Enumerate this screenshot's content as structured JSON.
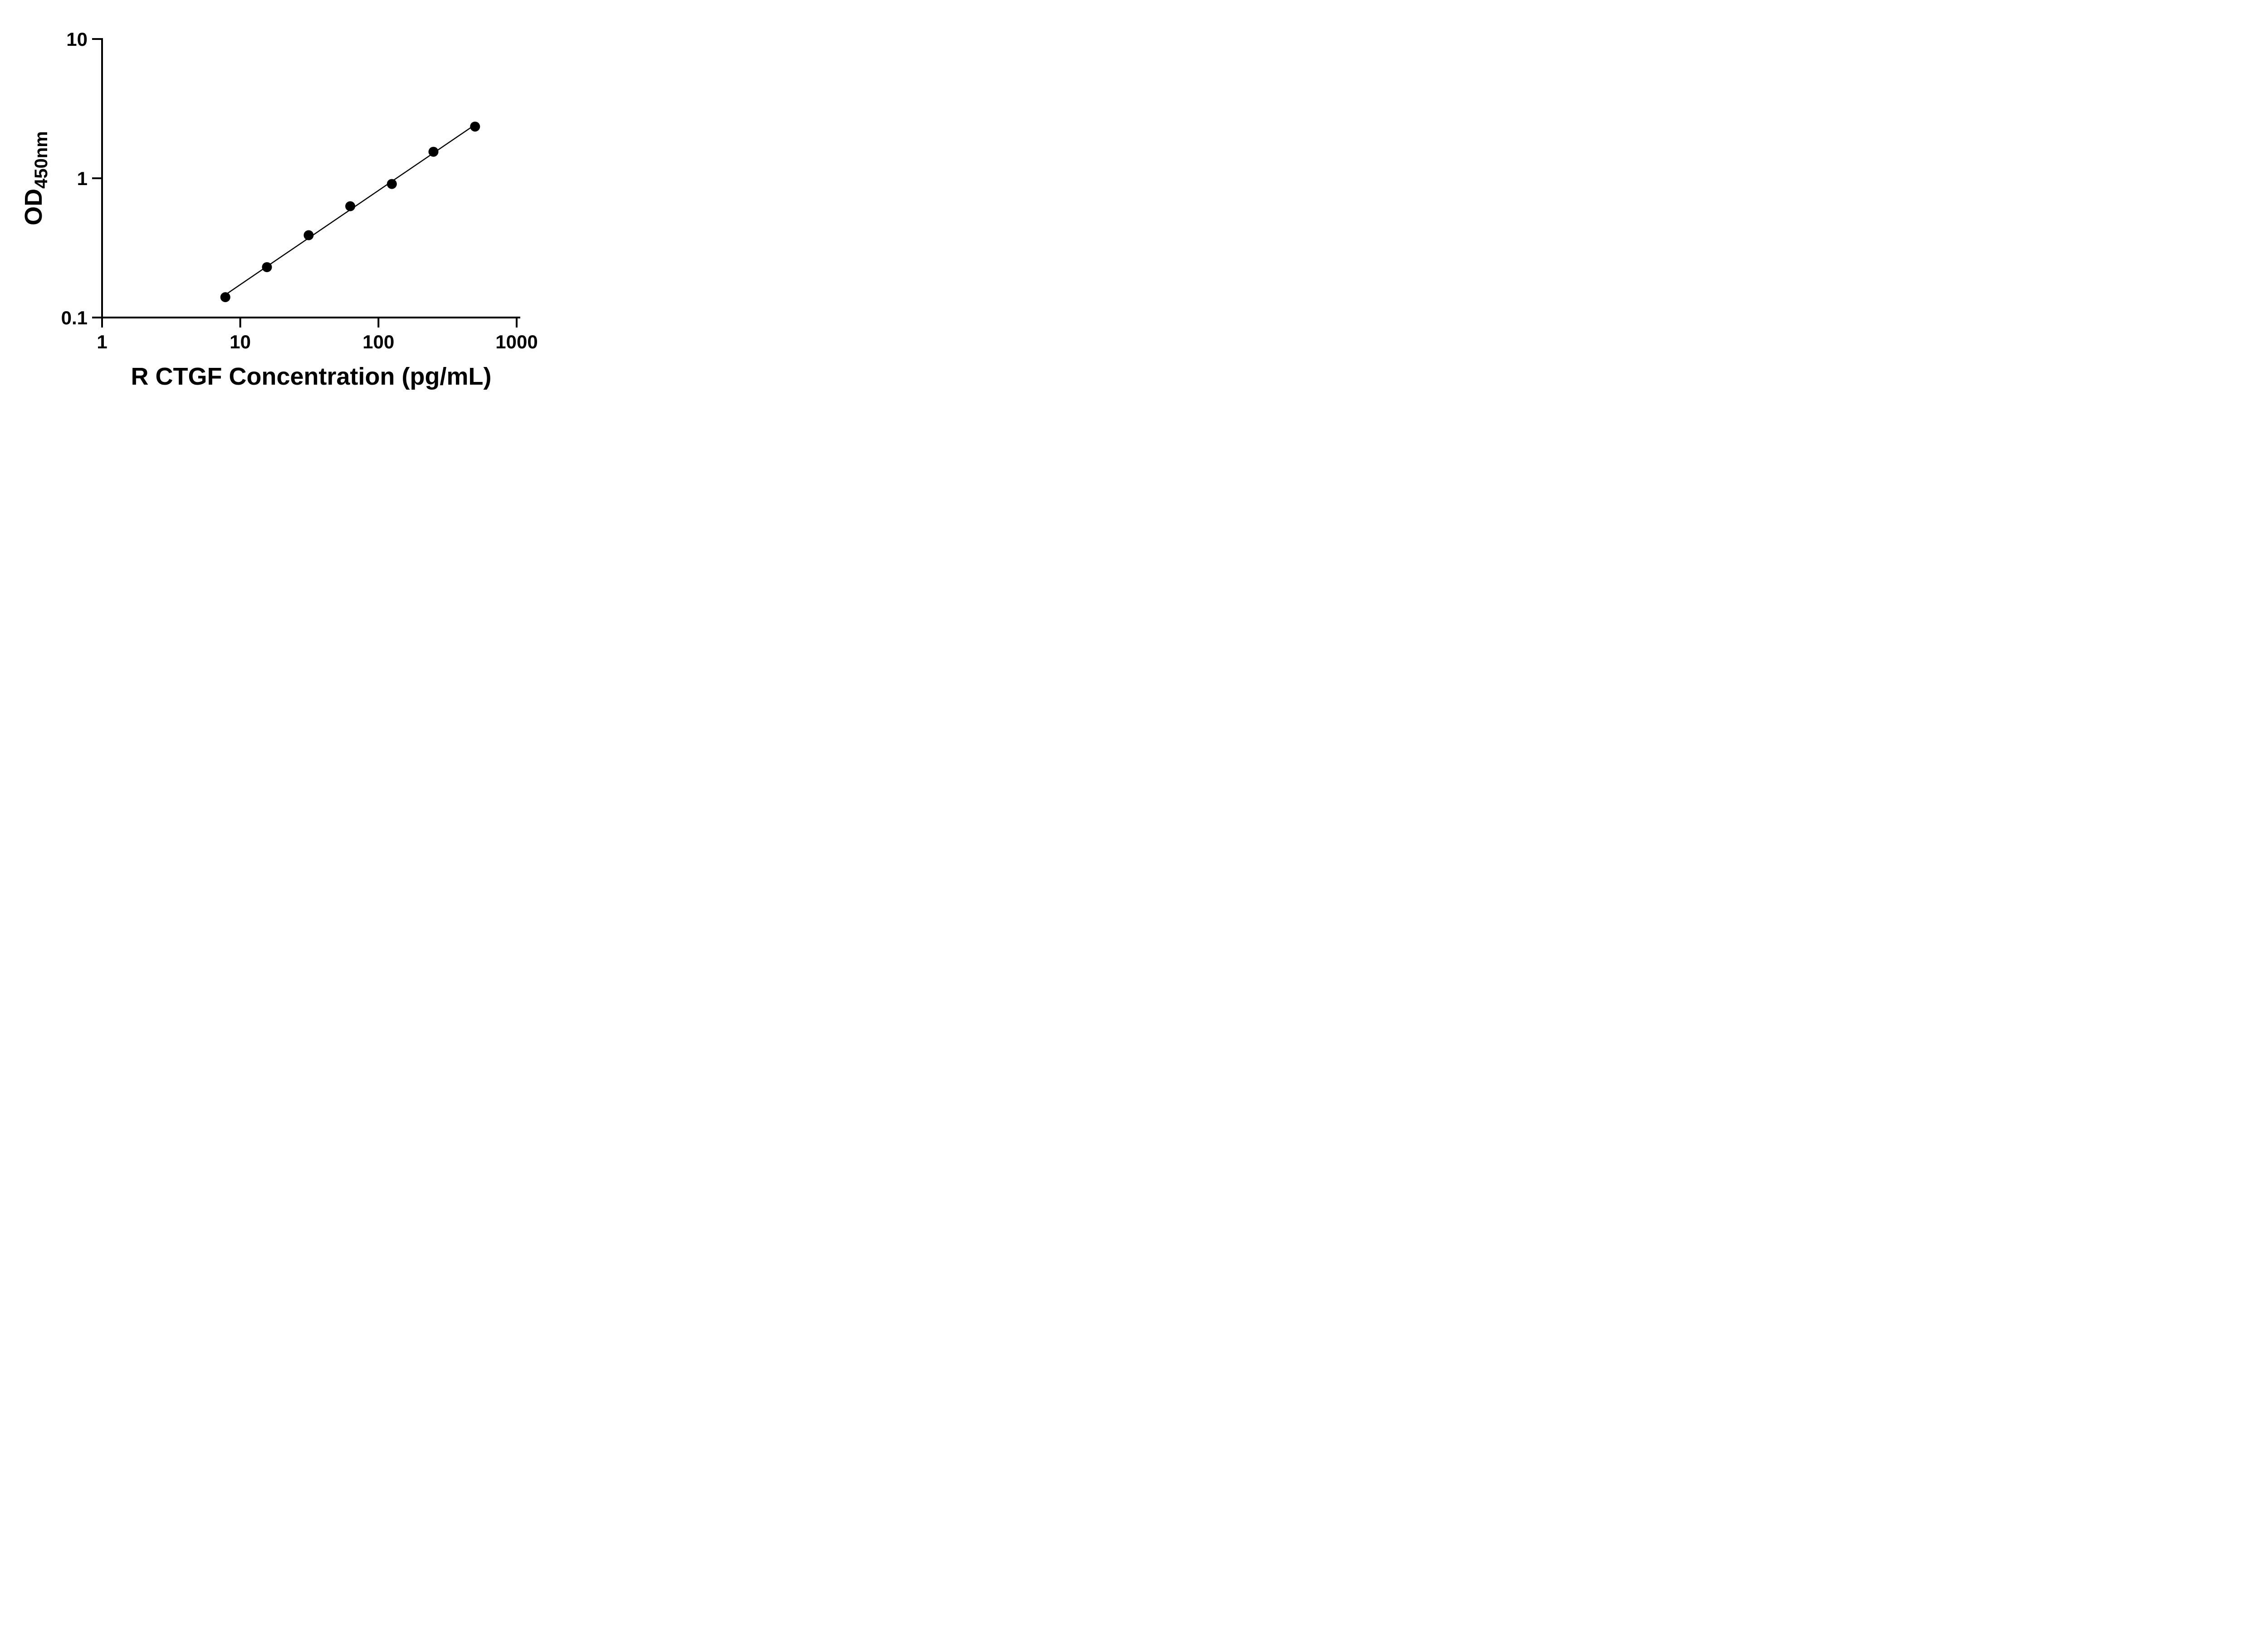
{
  "chart_data": {
    "type": "scatter",
    "title": "",
    "xlabel": "R CTGF Concentration (pg/mL)",
    "ylabel": "OD",
    "ylabel_subscript": "450nm",
    "x_scale": "log10",
    "y_scale": "log10",
    "xlim": [
      1,
      1000
    ],
    "ylim": [
      0.1,
      10
    ],
    "x_ticks": [
      1,
      10,
      100,
      1000
    ],
    "x_tick_labels": [
      "1",
      "10",
      "100",
      "1000"
    ],
    "y_ticks": [
      0.1,
      1,
      10
    ],
    "y_tick_labels": [
      "0.1",
      "1",
      "10"
    ],
    "grid": false,
    "legend": "none",
    "marker_color": "#000000",
    "line_color": "#000000",
    "trendline": "straight fit line in log-log space through the standard points",
    "points": [
      {
        "x": 7.8,
        "y": 0.14
      },
      {
        "x": 15.6,
        "y": 0.23
      },
      {
        "x": 31.25,
        "y": 0.39
      },
      {
        "x": 62.5,
        "y": 0.63
      },
      {
        "x": 125,
        "y": 0.91
      },
      {
        "x": 250,
        "y": 1.55
      },
      {
        "x": 500,
        "y": 2.35
      }
    ]
  }
}
